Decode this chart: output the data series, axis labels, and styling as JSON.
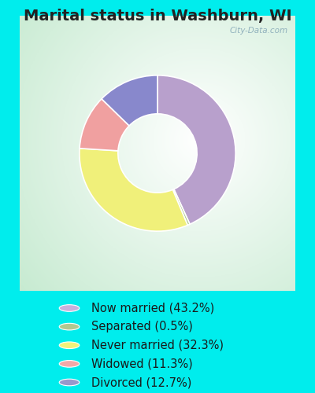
{
  "title": "Marital status in Washburn, WI",
  "title_fontsize": 14,
  "title_fontweight": "bold",
  "title_color": "#222222",
  "slices": [
    43.2,
    0.5,
    32.3,
    11.3,
    12.7
  ],
  "labels": [
    "Now married (43.2%)",
    "Separated (0.5%)",
    "Never married (32.3%)",
    "Widowed (11.3%)",
    "Divorced (12.7%)"
  ],
  "colors": [
    "#b8a0cc",
    "#b0c890",
    "#f0f07a",
    "#f0a0a0",
    "#8888cc"
  ],
  "legend_colors": [
    "#c8b0dc",
    "#b0c890",
    "#f2f27a",
    "#f4a8a8",
    "#9898cc"
  ],
  "background_outer": "#00eded",
  "watermark": "City-Data.com",
  "startangle": 90,
  "donut_width": 0.42,
  "legend_fontsize": 10.5
}
